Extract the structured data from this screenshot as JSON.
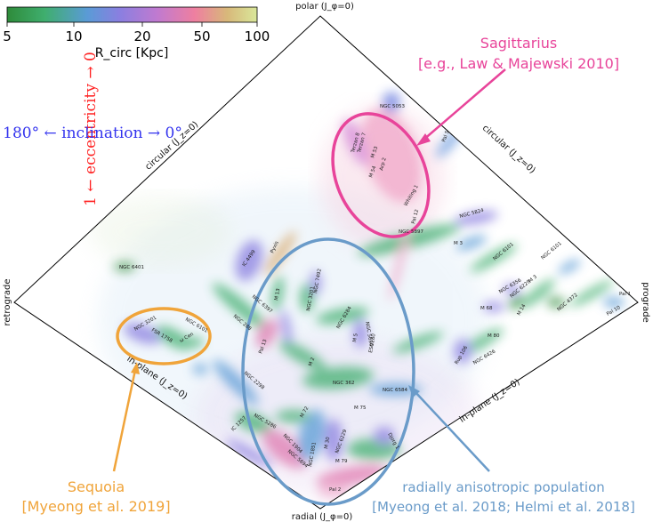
{
  "colorbar": {
    "label": "R_circ [Kpc]",
    "ticks": [
      "5",
      "10",
      "20",
      "50",
      "100"
    ],
    "gradient_colors": [
      "#2e8b3a",
      "#3fae6e",
      "#5a9bd6",
      "#8a7fe0",
      "#c07ad0",
      "#ee7fa0",
      "#d8b87a",
      "#d9e79a"
    ]
  },
  "corners": {
    "top": "polar (J_φ=0)",
    "bottom": "radial (J_φ=0)",
    "left": "retrograde",
    "right": "prograde"
  },
  "edges": {
    "top_left": "circular (J_z=0)",
    "top_right": "circular (J_z=0)",
    "bottom_left": "in-plane (J_z=0)",
    "bottom_right": "in-plane (J_z=0)"
  },
  "axis_labels": {
    "eccentricity": "1 ← eccentricity → 0",
    "inclination": "180° ← inclination → 0°"
  },
  "annotations": {
    "sagittarius": {
      "title": "Sagittarius",
      "ref": "[e.g., Law & Majewski 2010]",
      "color": "#e8449a"
    },
    "sequoia": {
      "title": "Sequoia",
      "ref": "[Myeong et al. 2019]",
      "color": "#f0a43a"
    },
    "radial": {
      "title": "radially anisotropic population",
      "ref": "[Myeong et al. 2018; Helmi et al. 2018]",
      "color": "#6a9bc9"
    }
  },
  "clusters": [
    {
      "name": "NGC 5053",
      "color": "#6b7fe0"
    },
    {
      "name": "Terzan 8",
      "color": "#e07ab0"
    },
    {
      "name": "Terzan 7",
      "color": "#e07ab0"
    },
    {
      "name": "Arp 2",
      "color": "#e07ab0"
    },
    {
      "name": "M 53",
      "color": "#8a7fe0"
    },
    {
      "name": "M 54",
      "color": "#e07ab0"
    },
    {
      "name": "Pal 5",
      "color": "#6b9be0"
    },
    {
      "name": "Whiting 1",
      "color": "#ee7fa0"
    },
    {
      "name": "Pal 12",
      "color": "#ee7fa0"
    },
    {
      "name": "NGC 5897",
      "color": "#3fae6e"
    },
    {
      "name": "NGC 5824",
      "color": "#8a7fe0"
    },
    {
      "name": "M 3",
      "color": "#3fae6e"
    },
    {
      "name": "NGC 6101",
      "color": "#3fae6e"
    },
    {
      "name": "IC 4499",
      "color": "#8a7fe0"
    },
    {
      "name": "Pyxis",
      "color": "#d8a86a"
    },
    {
      "name": "NGC 6401",
      "color": "#2e8b3a"
    },
    {
      "name": "NGC 6101",
      "color": "#3fae6e"
    },
    {
      "name": "M 13",
      "color": "#3fae6e"
    },
    {
      "name": "NGC 6397",
      "color": "#2e8b3a"
    },
    {
      "name": "NGC 7492",
      "color": "#8a7fe0"
    },
    {
      "name": "NGC 6284",
      "color": "#3fae6e"
    },
    {
      "name": "NGC 3201",
      "color": "#8a7fe0"
    },
    {
      "name": "NGC 288",
      "color": "#3fae6e"
    },
    {
      "name": "NGC 5634",
      "color": "#8a7fe0"
    },
    {
      "name": "M 5",
      "color": "#8a7fe0"
    },
    {
      "name": "ESO280",
      "color": "#3fae6e"
    },
    {
      "name": "M 2",
      "color": "#3fae6e"
    },
    {
      "name": "Pal 13",
      "color": "#e07ab0"
    },
    {
      "name": "NGC 6356",
      "color": "#3fae6e"
    },
    {
      "name": "NGC 6229",
      "color": "#3fae6e"
    },
    {
      "name": "M 68",
      "color": "#8a7fe0"
    },
    {
      "name": "M 14",
      "color": "#3fae6e"
    },
    {
      "name": "M 3",
      "color": "#3fae6e"
    },
    {
      "name": "NGC 6426",
      "color": "#3fae6e"
    },
    {
      "name": "NGC 4372",
      "color": "#2e8b3a"
    },
    {
      "name": "M 80",
      "color": "#3fae6e"
    },
    {
      "name": "Pal 1",
      "color": "#5a9bd6"
    },
    {
      "name": "Pal 10",
      "color": "#3fae6e"
    },
    {
      "name": "Rup 106",
      "color": "#8a7fe0"
    },
    {
      "name": "NGC 362",
      "color": "#3fae6e"
    },
    {
      "name": "NGC 6584",
      "color": "#5a9bd6"
    },
    {
      "name": "M 75",
      "color": "#3fae6e"
    },
    {
      "name": "NGC 2298",
      "color": "#3fae6e"
    },
    {
      "name": "NGC 5286",
      "color": "#3fae6e"
    },
    {
      "name": "IC 1257",
      "color": "#8a7fe0"
    },
    {
      "name": "NGC 1851",
      "color": "#5a9bd6"
    },
    {
      "name": "M 72",
      "color": "#3fae6e"
    },
    {
      "name": "NGC 6229",
      "color": "#3fae6e"
    },
    {
      "name": "M 79",
      "color": "#3fae6e"
    },
    {
      "name": "NGC 1904",
      "color": "#8a7fe0"
    },
    {
      "name": "NGC 5694",
      "color": "#e07ab0"
    },
    {
      "name": "M 30",
      "color": "#8a7fe0"
    },
    {
      "name": "Djorg 1",
      "color": "#3fae6e"
    },
    {
      "name": "Pal 2",
      "color": "#e07ab0"
    },
    {
      "name": "NGC 6101",
      "color": "#3fae6e"
    },
    {
      "name": "NGC 3201",
      "color": "#8a7fe0"
    },
    {
      "name": "ω Cen",
      "color": "#3fae6e"
    },
    {
      "name": "FSR 1758",
      "color": "#5a9bd6"
    }
  ]
}
